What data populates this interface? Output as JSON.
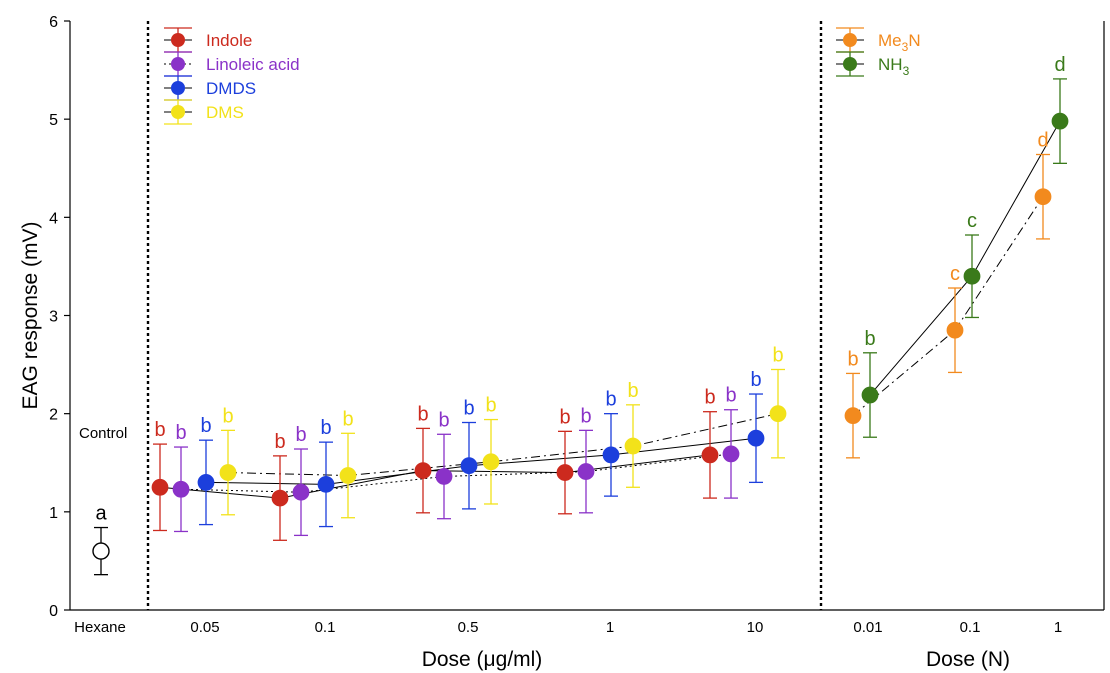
{
  "chart_data": {
    "type": "scatter",
    "ylabel": "EAG response (mV)",
    "ylim": [
      0,
      6
    ],
    "yticks": [
      0,
      1,
      2,
      3,
      4,
      5,
      6
    ],
    "grid": false,
    "legend_position": "top-left (per panel)",
    "panels": [
      {
        "id": "control",
        "label": "Control",
        "categories": [
          "Hexane"
        ],
        "series": [
          {
            "key": "hexane",
            "color": "#ffffff",
            "stroke": "#000000",
            "points": [
              {
                "x": "Hexane",
                "y": 0.6,
                "err": 0.24,
                "sig": "a"
              }
            ]
          }
        ]
      },
      {
        "id": "ugml",
        "xlabel": "Dose (μg/ml)",
        "categories": [
          "0.05",
          "0.1",
          "0.5",
          "1",
          "10"
        ],
        "series": [
          {
            "name": "Indole",
            "color": "#cc2a1e",
            "line": "solid",
            "points": [
              {
                "x": "0.05",
                "y": 1.25,
                "err": 0.44,
                "sig": "b"
              },
              {
                "x": "0.1",
                "y": 1.14,
                "err": 0.43,
                "sig": "b"
              },
              {
                "x": "0.5",
                "y": 1.42,
                "err": 0.43,
                "sig": "b"
              },
              {
                "x": "1",
                "y": 1.4,
                "err": 0.42,
                "sig": "b"
              },
              {
                "x": "10",
                "y": 1.58,
                "err": 0.44,
                "sig": "b"
              }
            ]
          },
          {
            "name": "Linoleic acid",
            "color": "#8a32c8",
            "line": "dotted",
            "points": [
              {
                "x": "0.05",
                "y": 1.23,
                "err": 0.43,
                "sig": "b"
              },
              {
                "x": "0.1",
                "y": 1.2,
                "err": 0.44,
                "sig": "b"
              },
              {
                "x": "0.5",
                "y": 1.36,
                "err": 0.43,
                "sig": "b"
              },
              {
                "x": "1",
                "y": 1.41,
                "err": 0.42,
                "sig": "b"
              },
              {
                "x": "10",
                "y": 1.59,
                "err": 0.45,
                "sig": "b"
              }
            ]
          },
          {
            "name": "DMDS",
            "color": "#1c3fdc",
            "line": "solid",
            "points": [
              {
                "x": "0.05",
                "y": 1.3,
                "err": 0.43,
                "sig": "b"
              },
              {
                "x": "0.1",
                "y": 1.28,
                "err": 0.43,
                "sig": "b"
              },
              {
                "x": "0.5",
                "y": 1.47,
                "err": 0.44,
                "sig": "b"
              },
              {
                "x": "1",
                "y": 1.58,
                "err": 0.42,
                "sig": "b"
              },
              {
                "x": "10",
                "y": 1.75,
                "err": 0.45,
                "sig": "b"
              }
            ]
          },
          {
            "name": "DMS",
            "color": "#f2e21a",
            "line": "dashdot",
            "points": [
              {
                "x": "0.05",
                "y": 1.4,
                "err": 0.43,
                "sig": "b"
              },
              {
                "x": "0.1",
                "y": 1.37,
                "err": 0.43,
                "sig": "b"
              },
              {
                "x": "0.5",
                "y": 1.51,
                "err": 0.43,
                "sig": "b"
              },
              {
                "x": "1",
                "y": 1.67,
                "err": 0.42,
                "sig": "b"
              },
              {
                "x": "10",
                "y": 2.0,
                "err": 0.45,
                "sig": "b"
              }
            ]
          }
        ]
      },
      {
        "id": "normal",
        "xlabel": "Dose (N)",
        "categories": [
          "0.01",
          "0.1",
          "1"
        ],
        "series": [
          {
            "name": "Me",
            "name_sub": "3",
            "name_tail": "N",
            "color": "#f28a1e",
            "line": "dashdot",
            "points": [
              {
                "x": "0.01",
                "y": 1.98,
                "err": 0.43,
                "sig": "b"
              },
              {
                "x": "0.1",
                "y": 2.85,
                "err": 0.43,
                "sig": "c"
              },
              {
                "x": "1",
                "y": 4.21,
                "err": 0.43,
                "sig": "d"
              }
            ]
          },
          {
            "name": "NH",
            "name_sub": "3",
            "name_tail": "",
            "color": "#3a7a1a",
            "line": "solid",
            "points": [
              {
                "x": "0.01",
                "y": 2.19,
                "err": 0.43,
                "sig": "b"
              },
              {
                "x": "0.1",
                "y": 3.4,
                "err": 0.42,
                "sig": "c"
              },
              {
                "x": "1",
                "y": 4.98,
                "err": 0.43,
                "sig": "d"
              }
            ]
          }
        ]
      }
    ]
  }
}
